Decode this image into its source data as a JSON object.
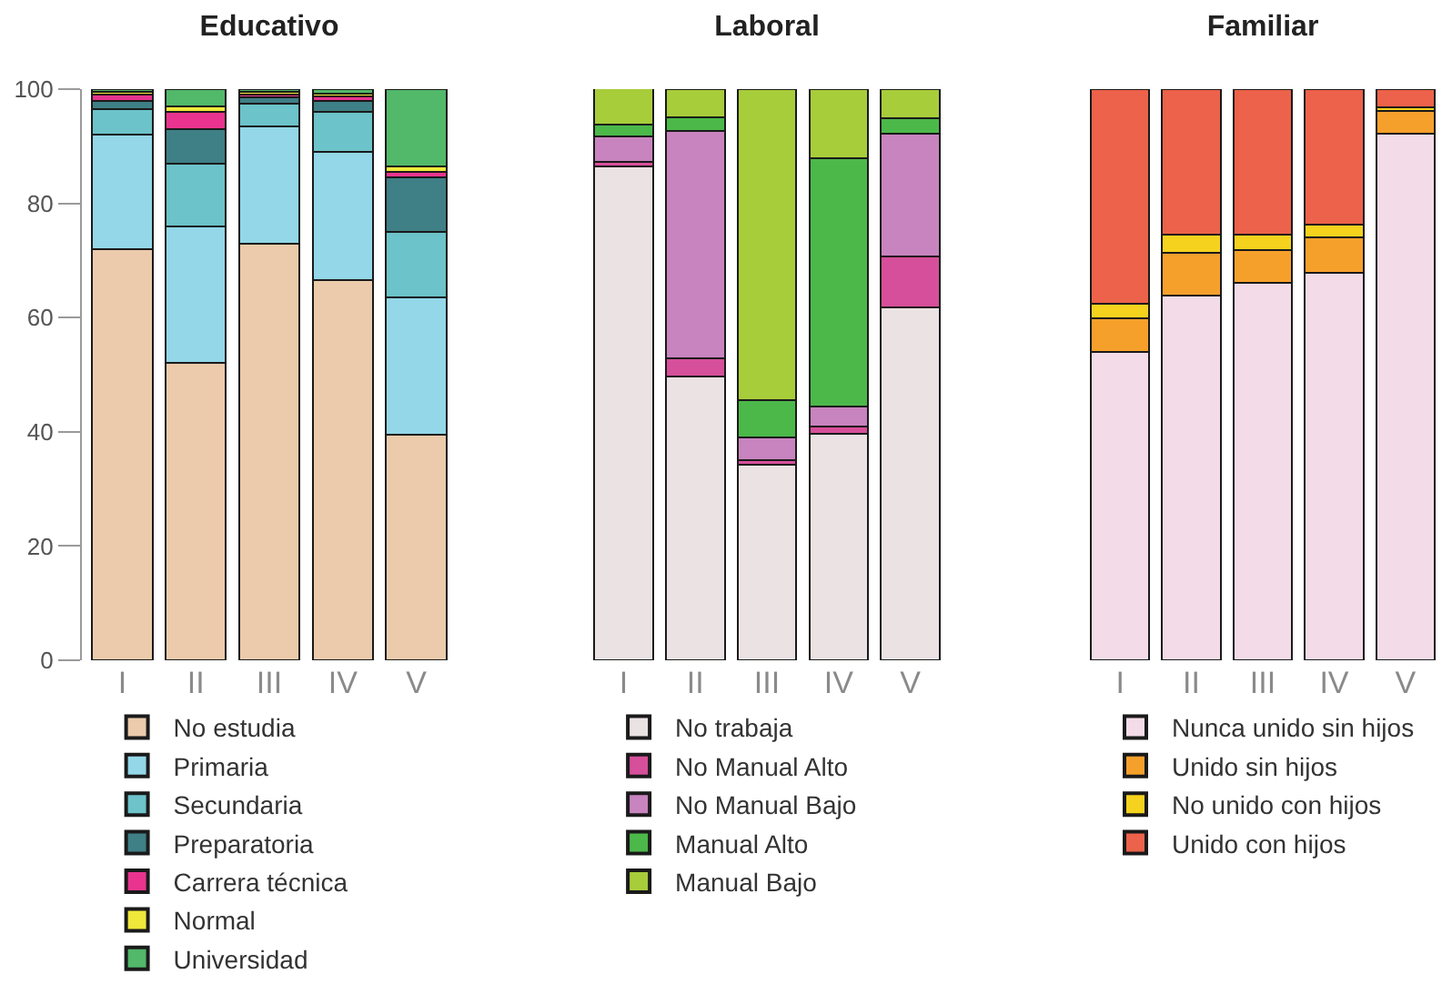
{
  "chart_data": [
    {
      "type": "bar",
      "title": "Educativo",
      "categories": [
        "I",
        "II",
        "III",
        "IV",
        "V"
      ],
      "stacked": true,
      "ylim": [
        0,
        100
      ],
      "yticks": [
        0,
        20,
        40,
        60,
        80,
        100
      ],
      "grid": false,
      "legend": "bottom",
      "series": [
        {
          "name": "No estudia",
          "color": "#ebcbab",
          "values": [
            72,
            52,
            73,
            66.5,
            39.5
          ]
        },
        {
          "name": "Primaria",
          "color": "#93d7e8",
          "values": [
            20,
            24,
            20.5,
            22.5,
            24
          ]
        },
        {
          "name": "Secundaria",
          "color": "#6cc3c9",
          "values": [
            4.5,
            11,
            4,
            7,
            11.5
          ]
        },
        {
          "name": "Preparatoria",
          "color": "#3f7f86",
          "values": [
            1.5,
            6,
            1,
            2,
            9.5
          ]
        },
        {
          "name": "Carrera técnica",
          "color": "#e8348f",
          "values": [
            1,
            3,
            0.5,
            0.8,
            1
          ]
        },
        {
          "name": "Normal",
          "color": "#f0e83a",
          "values": [
            0.5,
            1,
            0.5,
            0.4,
            1
          ]
        },
        {
          "name": "Universidad",
          "color": "#52b86a",
          "values": [
            0.5,
            3,
            0.5,
            0.8,
            13.5
          ]
        }
      ]
    },
    {
      "type": "bar",
      "title": "Laboral",
      "categories": [
        "I",
        "II",
        "III",
        "IV",
        "V"
      ],
      "stacked": true,
      "ylim": [
        0,
        100
      ],
      "tick_labels": "x",
      "grid": false,
      "legend": "bottom",
      "series": [
        {
          "name": "No trabaja",
          "color": "#ebe3e3",
          "values": [
            86.5,
            49.7,
            34.3,
            39.6,
            61.8
          ]
        },
        {
          "name": "No Manual Alto",
          "color": "#d64f9a",
          "values": [
            0.8,
            3.2,
            0.7,
            1.3,
            8.9
          ]
        },
        {
          "name": "No Manual Bajo",
          "color": "#c884bf",
          "values": [
            4.5,
            39.8,
            4,
            3.6,
            21.5
          ]
        },
        {
          "name": "Manual Alto",
          "color": "#4cb84a",
          "values": [
            2,
            2.4,
            6.6,
            43.4,
            2.7
          ]
        },
        {
          "name": "Manual Bajo",
          "color": "#a8cd3a",
          "values": [
            6.5,
            4.9,
            54.4,
            12.1,
            5.1
          ]
        }
      ]
    },
    {
      "type": "bar",
      "title": "Familiar",
      "categories": [
        "I",
        "II",
        "III",
        "IV",
        "V"
      ],
      "stacked": true,
      "ylim": [
        0,
        100
      ],
      "tick_labels": "x",
      "grid": false,
      "legend": "bottom",
      "series": [
        {
          "name": "Nunca unido sin hijos",
          "color": "#f3dbe8",
          "values": [
            54,
            63.9,
            66.1,
            67.8,
            92.2
          ]
        },
        {
          "name": "Unido sin hijos",
          "color": "#f6a02c",
          "values": [
            5.8,
            7.4,
            5.7,
            6.2,
            4
          ]
        },
        {
          "name": "No unido con hijos",
          "color": "#f4d21e",
          "values": [
            2.7,
            3.2,
            2.7,
            2.2,
            0.6
          ]
        },
        {
          "name": "Unido con hijos",
          "color": "#ec624a",
          "values": [
            37.5,
            25.5,
            25.5,
            23.8,
            3.2
          ]
        }
      ]
    }
  ]
}
